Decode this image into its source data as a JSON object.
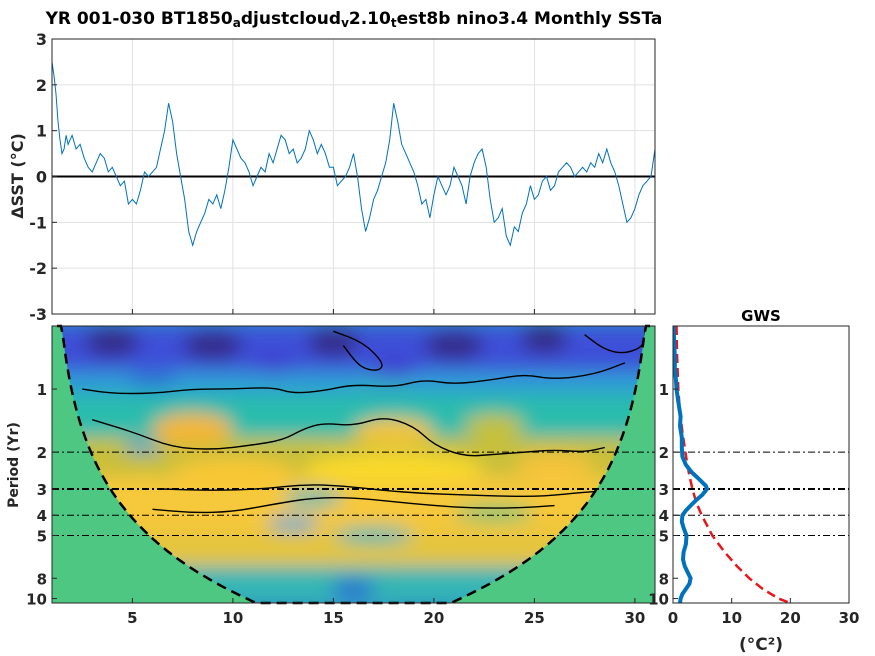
{
  "figure": {
    "title_parts": [
      {
        "text": "YR 001-030 BT1850",
        "sub": false
      },
      {
        "text": "a",
        "sub": true
      },
      {
        "text": "djustcloud",
        "sub": false
      },
      {
        "text": "v",
        "sub": true
      },
      {
        "text": "2.10",
        "sub": false
      },
      {
        "text": "t",
        "sub": true
      },
      {
        "text": "est8b nino3.4 Monthly SSTa",
        "sub": false
      }
    ]
  },
  "chart_data": [
    {
      "id": "sst_timeseries",
      "type": "line",
      "title": "",
      "xlabel": "",
      "ylabel": "ΔSST (°C)",
      "xlim": [
        1,
        31
      ],
      "ylim": [
        -3,
        3
      ],
      "yticks": [
        -3,
        -2,
        -1,
        0,
        1,
        2,
        3
      ],
      "xticks": [
        5,
        10,
        15,
        20,
        25,
        30
      ],
      "grid": true,
      "zero_line": true,
      "series": [
        {
          "color": "#0072BD",
          "x": [
            1.0,
            1.1,
            1.2,
            1.3,
            1.4,
            1.5,
            1.6,
            1.7,
            1.8,
            1.9,
            2.0,
            2.2,
            2.4,
            2.6,
            2.8,
            3.0,
            3.2,
            3.4,
            3.6,
            3.8,
            4.0,
            4.2,
            4.4,
            4.6,
            4.8,
            5.0,
            5.2,
            5.4,
            5.6,
            5.8,
            6.0,
            6.2,
            6.4,
            6.6,
            6.8,
            7.0,
            7.2,
            7.4,
            7.6,
            7.8,
            8.0,
            8.2,
            8.4,
            8.6,
            8.8,
            9.0,
            9.2,
            9.4,
            9.6,
            9.8,
            10.0,
            10.2,
            10.4,
            10.6,
            10.8,
            11.0,
            11.2,
            11.4,
            11.6,
            11.8,
            12.0,
            12.2,
            12.4,
            12.6,
            12.8,
            13.0,
            13.2,
            13.4,
            13.6,
            13.8,
            14.0,
            14.2,
            14.4,
            14.6,
            14.8,
            15.0,
            15.2,
            15.4,
            15.6,
            15.8,
            16.0,
            16.2,
            16.4,
            16.6,
            16.8,
            17.0,
            17.2,
            17.4,
            17.6,
            17.8,
            18.0,
            18.2,
            18.4,
            18.6,
            18.8,
            19.0,
            19.2,
            19.4,
            19.6,
            19.8,
            20.0,
            20.2,
            20.4,
            20.6,
            20.8,
            21.0,
            21.2,
            21.4,
            21.6,
            21.8,
            22.0,
            22.2,
            22.4,
            22.6,
            22.8,
            23.0,
            23.2,
            23.4,
            23.6,
            23.8,
            24.0,
            24.2,
            24.4,
            24.6,
            24.8,
            25.0,
            25.2,
            25.4,
            25.6,
            25.8,
            26.0,
            26.2,
            26.4,
            26.6,
            26.8,
            27.0,
            27.2,
            27.4,
            27.6,
            27.8,
            28.0,
            28.2,
            28.4,
            28.6,
            28.8,
            29.0,
            29.2,
            29.4,
            29.6,
            29.8,
            30.0,
            30.2,
            30.4,
            30.6,
            30.8,
            31.0
          ],
          "y": [
            2.5,
            2.2,
            1.8,
            1.2,
            0.8,
            0.5,
            0.6,
            0.9,
            0.7,
            0.8,
            0.9,
            0.6,
            0.7,
            0.4,
            0.2,
            0.1,
            0.3,
            0.5,
            0.4,
            0.1,
            0.2,
            0.0,
            -0.2,
            -0.1,
            -0.6,
            -0.5,
            -0.6,
            -0.3,
            0.1,
            0.0,
            0.1,
            0.2,
            0.6,
            1.0,
            1.6,
            1.2,
            0.5,
            0.0,
            -0.5,
            -1.2,
            -1.5,
            -1.2,
            -1.0,
            -0.8,
            -0.5,
            -0.6,
            -0.4,
            -0.7,
            -0.3,
            0.2,
            0.8,
            0.6,
            0.4,
            0.3,
            0.1,
            -0.2,
            0.0,
            0.2,
            0.1,
            0.5,
            0.3,
            0.6,
            0.9,
            0.8,
            0.5,
            0.6,
            0.3,
            0.4,
            0.6,
            1.0,
            0.8,
            0.5,
            0.7,
            0.5,
            0.2,
            0.2,
            -0.2,
            -0.1,
            0.0,
            0.2,
            0.5,
            0.0,
            -0.7,
            -1.2,
            -0.9,
            -0.5,
            -0.3,
            0.0,
            0.3,
            0.8,
            1.6,
            1.2,
            0.7,
            0.5,
            0.3,
            0.1,
            -0.2,
            -0.6,
            -0.5,
            -0.9,
            -0.4,
            0.0,
            -0.2,
            -0.4,
            -0.2,
            0.2,
            0.0,
            -0.2,
            -0.6,
            0.0,
            0.3,
            0.5,
            0.6,
            0.2,
            -0.5,
            -1.0,
            -0.9,
            -0.7,
            -1.3,
            -1.5,
            -1.1,
            -1.2,
            -0.8,
            -0.6,
            -0.2,
            -0.5,
            -0.4,
            -0.1,
            0.0,
            -0.3,
            -0.2,
            0.1,
            0.2,
            0.3,
            0.2,
            0.0,
            0.1,
            0.2,
            0.1,
            0.3,
            0.2,
            0.5,
            0.3,
            0.6,
            0.3,
            0.1,
            -0.2,
            -0.6,
            -1.0,
            -0.9,
            -0.7,
            -0.4,
            -0.2,
            -0.1,
            0.0,
            0.6
          ]
        }
      ]
    },
    {
      "id": "wavelet_power",
      "type": "heatmap",
      "title": "",
      "xlabel": "",
      "ylabel": "Period (Yr)",
      "xlim": [
        1,
        31
      ],
      "ylim": [
        0.5,
        10.5
      ],
      "xticks": [
        5,
        10,
        15,
        20,
        25,
        30
      ],
      "yticks": [
        1,
        2,
        3,
        4,
        5,
        8,
        10
      ],
      "yscale": "log",
      "dashed_reference_periods": [
        2,
        3,
        4,
        5
      ],
      "colormap": "parula",
      "mask_color": "#4DC782"
    },
    {
      "id": "global_wavelet_spectrum",
      "type": "line",
      "title": "GWS",
      "xlabel": "(°C²)",
      "ylabel": "",
      "xlim": [
        0,
        30
      ],
      "ylim": [
        0.5,
        10.5
      ],
      "xticks": [
        0,
        10,
        20,
        30
      ],
      "yticks": [
        1,
        2,
        3,
        4,
        5,
        8,
        10
      ],
      "yscale": "log",
      "dashed_reference_periods": [
        2,
        3,
        4,
        5
      ],
      "series": [
        {
          "color": "#0072BD",
          "style": "solid",
          "period": [
            0.5,
            0.6,
            0.7,
            0.8,
            0.9,
            1.0,
            1.1,
            1.2,
            1.35,
            1.5,
            1.7,
            1.9,
            2.1,
            2.3,
            2.5,
            2.7,
            2.9,
            3.0,
            3.2,
            3.4,
            3.6,
            3.8,
            4.0,
            4.3,
            4.6,
            5.0,
            5.5,
            6.0,
            6.5,
            7.0,
            7.5,
            8.0,
            8.5,
            9.0,
            9.5,
            10.0,
            10.5
          ],
          "power": [
            0.1,
            0.2,
            0.3,
            0.3,
            0.5,
            0.6,
            0.8,
            1.0,
            1.3,
            1.2,
            1.5,
            1.5,
            1.6,
            2.2,
            3.2,
            4.5,
            5.6,
            5.8,
            5.0,
            3.9,
            3.0,
            2.2,
            1.6,
            1.5,
            1.8,
            2.3,
            2.2,
            1.8,
            1.7,
            2.0,
            2.5,
            3.0,
            2.8,
            2.2,
            1.6,
            1.3,
            1.2
          ]
        },
        {
          "color": "#E8151B",
          "style": "dashed",
          "period": [
            0.5,
            0.7,
            1.0,
            1.3,
            1.6,
            2.0,
            2.5,
            3.0,
            3.5,
            4.0,
            5.0,
            6.0,
            7.0,
            8.0,
            9.0,
            10.0,
            10.5
          ],
          "power": [
            0.6,
            0.7,
            0.9,
            1.2,
            1.6,
            2.1,
            2.7,
            3.3,
            4.0,
            4.9,
            6.7,
            8.8,
            10.9,
            13.0,
            15.3,
            18.0,
            20.0
          ]
        }
      ]
    }
  ]
}
